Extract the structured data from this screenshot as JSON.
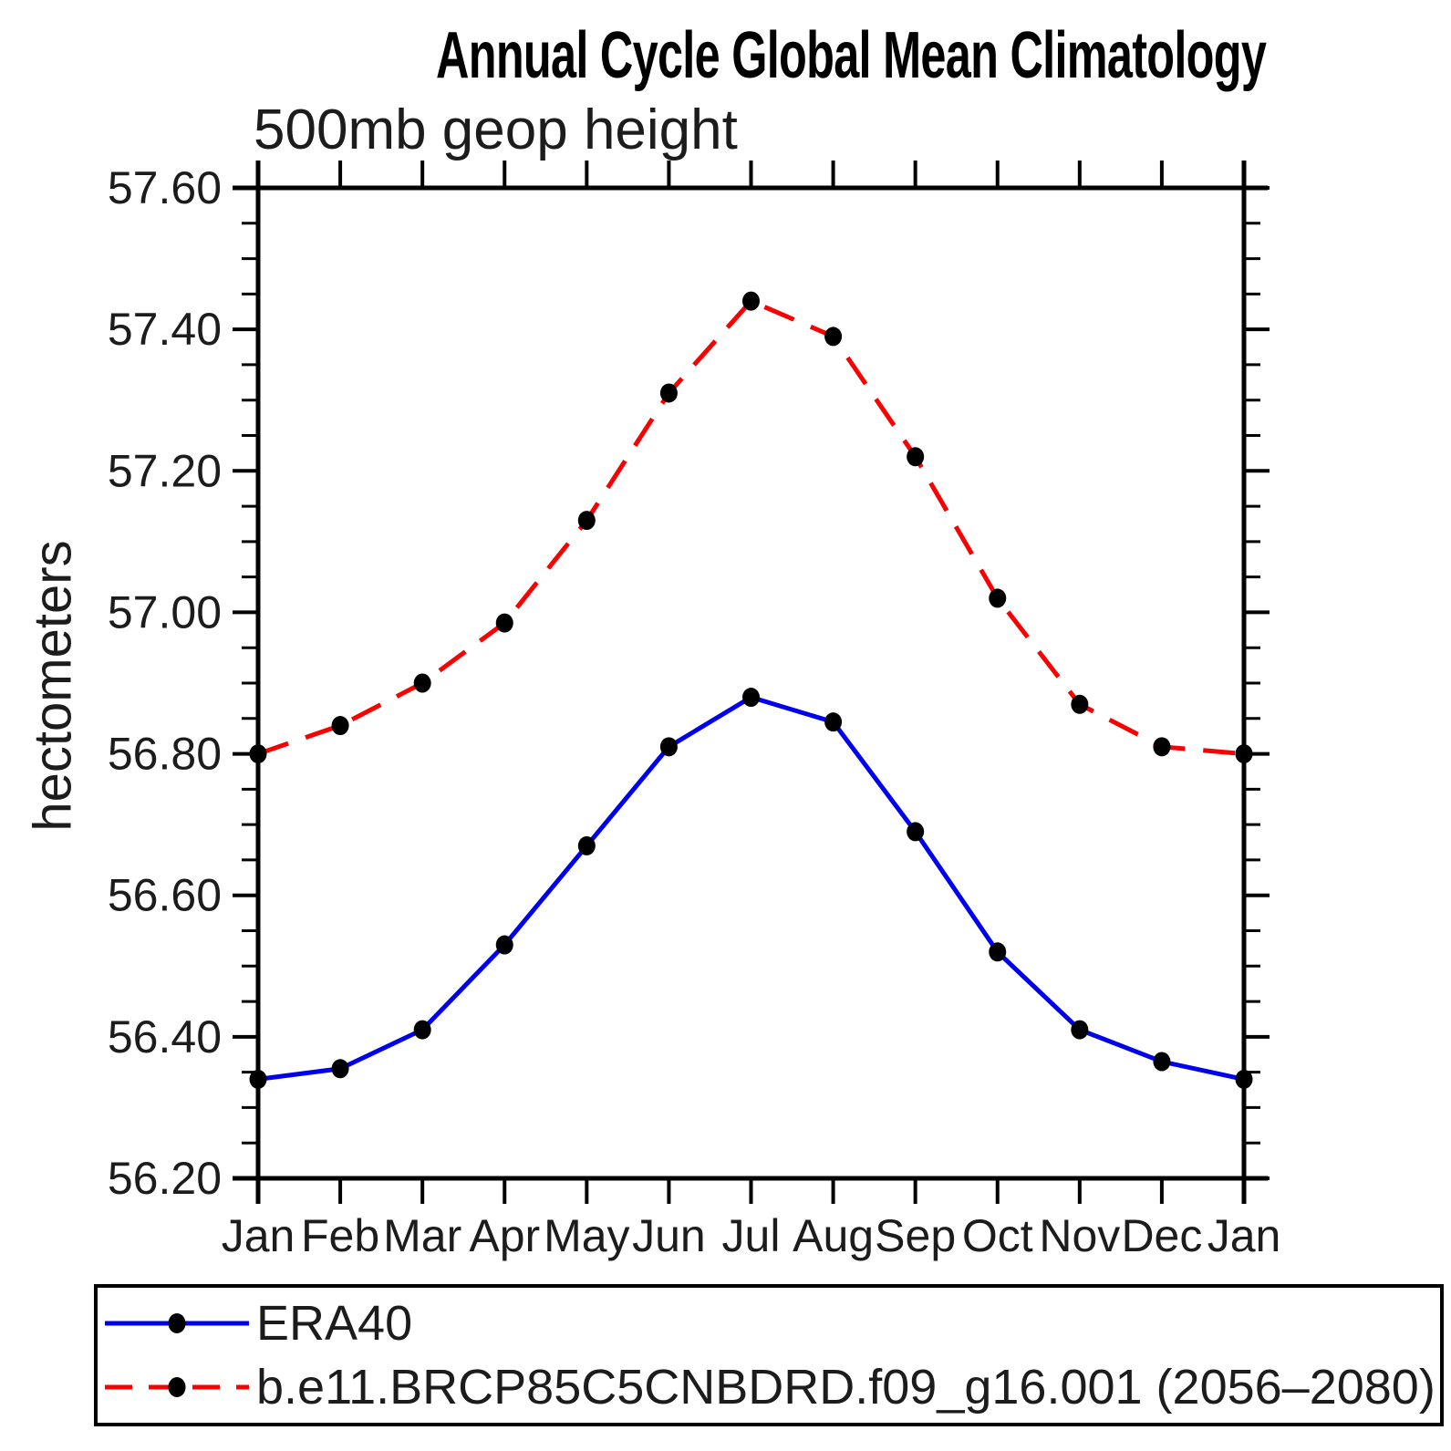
{
  "title": "Annual Cycle Global Mean Climatology",
  "subtitle": "500mb geop height",
  "legend": {
    "entries": [
      {
        "label": "ERA40",
        "color": "#0000EE",
        "style": "solid",
        "marker": "dot",
        "marker_color": "#000000"
      },
      {
        "label": "b.e11.BRCP85C5CNBDRD.f09_g16.001 (2056–2080)",
        "color": "#FA0000",
        "style": "dashed",
        "marker": "dot",
        "marker_color": "#000000"
      }
    ]
  },
  "chart_data": {
    "type": "line",
    "title": "Annual Cycle Global Mean Climatology",
    "subtitle": "500mb geop height",
    "xlabel": "",
    "ylabel": "hectometers",
    "categories": [
      "Jan",
      "Feb",
      "Mar",
      "Apr",
      "May",
      "Jun",
      "Jul",
      "Aug",
      "Sep",
      "Oct",
      "Nov",
      "Dec",
      "Jan"
    ],
    "series": [
      {
        "name": "ERA40",
        "color": "#0000EE",
        "line_style": "solid",
        "marker": "circle",
        "marker_color": "#000000",
        "values": [
          56.34,
          56.355,
          56.41,
          56.53,
          56.67,
          56.81,
          56.88,
          56.845,
          56.69,
          56.52,
          56.41,
          56.365,
          56.34
        ]
      },
      {
        "name": "b.e11.BRCP85C5CNBDRD.f09_g16.001 (2056–2080)",
        "color": "#FA0000",
        "line_style": "dashed",
        "marker": "circle",
        "marker_color": "#000000",
        "values": [
          56.8,
          56.84,
          56.9,
          56.985,
          57.13,
          57.31,
          57.44,
          57.39,
          57.22,
          57.02,
          56.87,
          56.81,
          56.8
        ]
      }
    ],
    "ylim": [
      56.2,
      57.6
    ],
    "ytick_step": 0.2,
    "yminor_step": 0.05,
    "ytick_label_decimals": 2,
    "grid": false,
    "legend_position": "bottom"
  }
}
